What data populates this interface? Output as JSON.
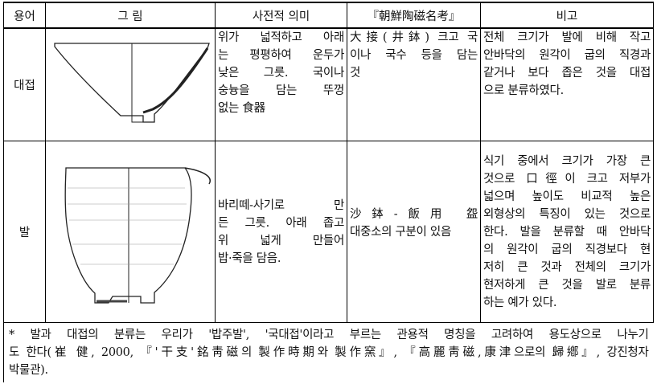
{
  "table": {
    "header": [
      "용어",
      "그 림",
      "사전적 의미",
      "『朝鮮陶磁名考』",
      "비고"
    ],
    "rows": [
      {
        "term": "대접",
        "meaning": [
          "위가 넓적하고 아래",
          "는 평평하여 운두가",
          "낮은 그릇. 국이나",
          "숭늉을 담는 뚜껑",
          "없는 食器"
        ],
        "book": [
          "大接(井鉢) 크고 국",
          "이나 국수 등을 담는",
          "것"
        ],
        "note": [
          "전체 크기가 발에 비해 작고",
          "안바닥의 원각이 굽의 직경과",
          "같거나 보다 좁은 것을 대접",
          "으로 분류하였다."
        ]
      },
      {
        "term": "발",
        "meaning": [
          "바리떼-사기로 만",
          "든 그릇. 아래 좁고",
          "위 넓게 만들어",
          "밥·죽을 담음."
        ],
        "book": [
          "沙鉢-飯用 盌",
          "대중소의 구분이 있음"
        ],
        "note": [
          "식기 중에서 크기가 가장 큰",
          "것으로 口徑이 크고 저부가",
          "넓으며 높이도 비교적 높은",
          "외형상의 특징이 있는 것으로",
          "한다. 발을 분류할 때 안바닥",
          "의 원각이 굽의 직경보다 현",
          "저히 큰 것과 전체의 크기가",
          "현저하게 큰 것을 발로 분류",
          "하는 예가 있다."
        ]
      }
    ],
    "footnote": [
      "* 발과 대접의 분류는 우리가 '밥주발', '국대접'이라고 부르는 관용적 명칭을 고려하여 용도상으로 나누기",
      "도 한다(崔 健, 2000, 『'干支'銘靑磁의 製作時期와 製作窯』, 『高麗靑磁,康津으로의 歸鄕』, 강진청자",
      "박물관)."
    ]
  }
}
